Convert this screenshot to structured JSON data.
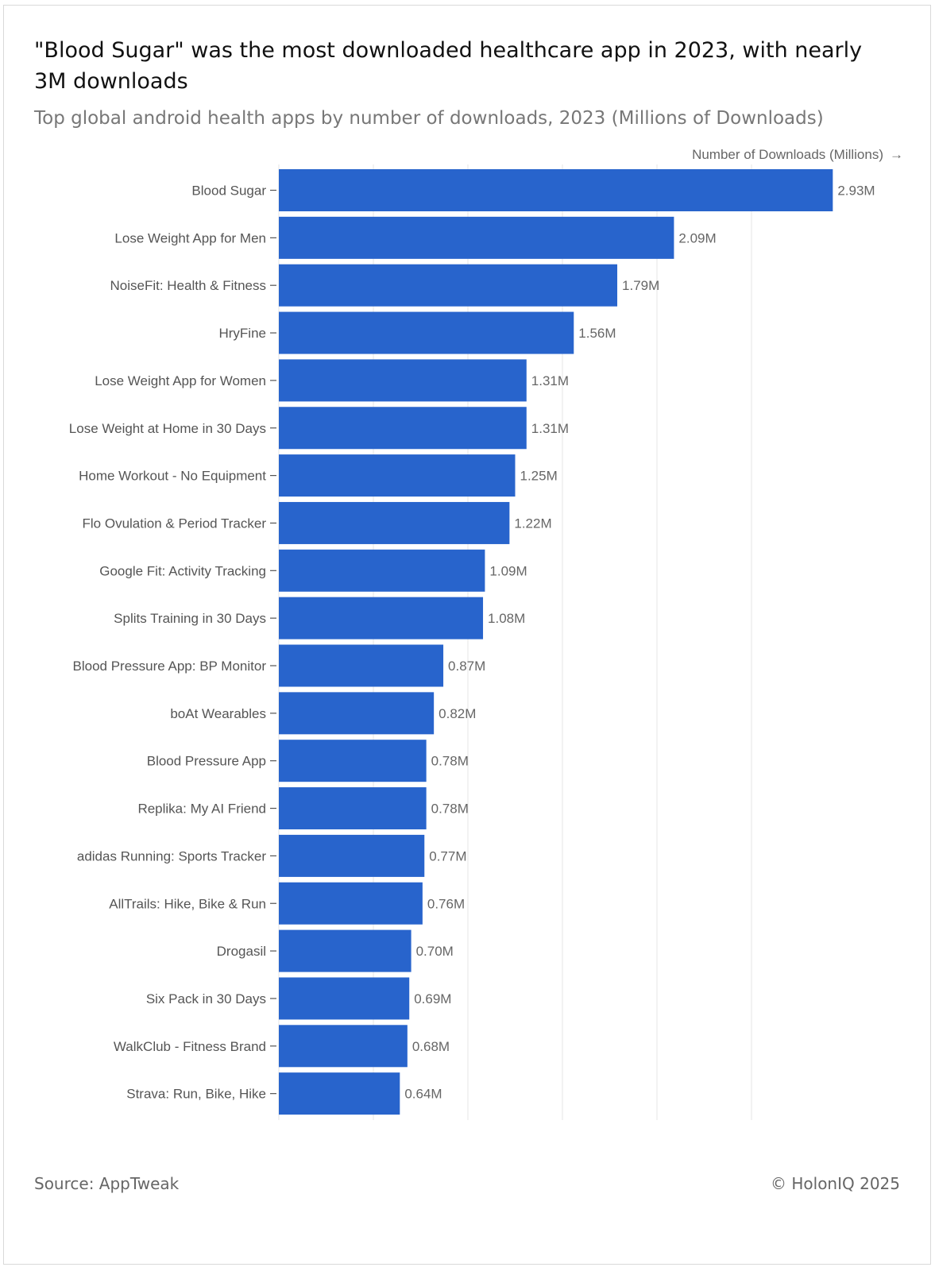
{
  "header": {
    "title": "\"Blood Sugar\" was the most downloaded healthcare app in 2023, with nearly 3M downloads",
    "subtitle": "Top global android health apps by number of downloads, 2023 (Millions of Downloads)"
  },
  "chart_data": {
    "type": "bar",
    "orientation": "horizontal",
    "xlabel": "Number of Downloads (Millions)",
    "xlabel_arrow": "→",
    "xlim": [
      0,
      3
    ],
    "grid": true,
    "gridline_values": [
      0,
      0.5,
      1,
      1.5,
      2,
      2.5
    ],
    "bar_color": "#2864cc",
    "categories": [
      "Blood Sugar",
      "Lose Weight App for Men",
      "NoiseFit: Health & Fitness",
      "HryFine",
      "Lose Weight App for Women",
      "Lose Weight at Home in 30 Days",
      "Home Workout - No Equipment",
      "Flo Ovulation & Period Tracker",
      "Google Fit: Activity Tracking",
      "Splits Training in 30 Days",
      "Blood Pressure App: BP Monitor",
      "boAt Wearables",
      "Blood Pressure App",
      "Replika: My AI Friend",
      "adidas Running: Sports Tracker",
      "AllTrails: Hike, Bike & Run",
      "Drogasil",
      "Six Pack in 30 Days",
      "WalkClub - Fitness Brand",
      "Strava: Run, Bike, Hike"
    ],
    "values": [
      2.93,
      2.09,
      1.79,
      1.56,
      1.31,
      1.31,
      1.25,
      1.22,
      1.09,
      1.08,
      0.87,
      0.82,
      0.78,
      0.78,
      0.77,
      0.76,
      0.7,
      0.69,
      0.68,
      0.64
    ],
    "value_labels": [
      "2.93M",
      "2.09M",
      "1.79M",
      "1.56M",
      "1.31M",
      "1.31M",
      "1.25M",
      "1.22M",
      "1.09M",
      "1.08M",
      "0.87M",
      "0.82M",
      "0.78M",
      "0.78M",
      "0.77M",
      "0.76M",
      "0.70M",
      "0.69M",
      "0.68M",
      "0.64M"
    ]
  },
  "footer": {
    "source": "Source: AppTweak",
    "copyright": "© HolonIQ 2025"
  }
}
